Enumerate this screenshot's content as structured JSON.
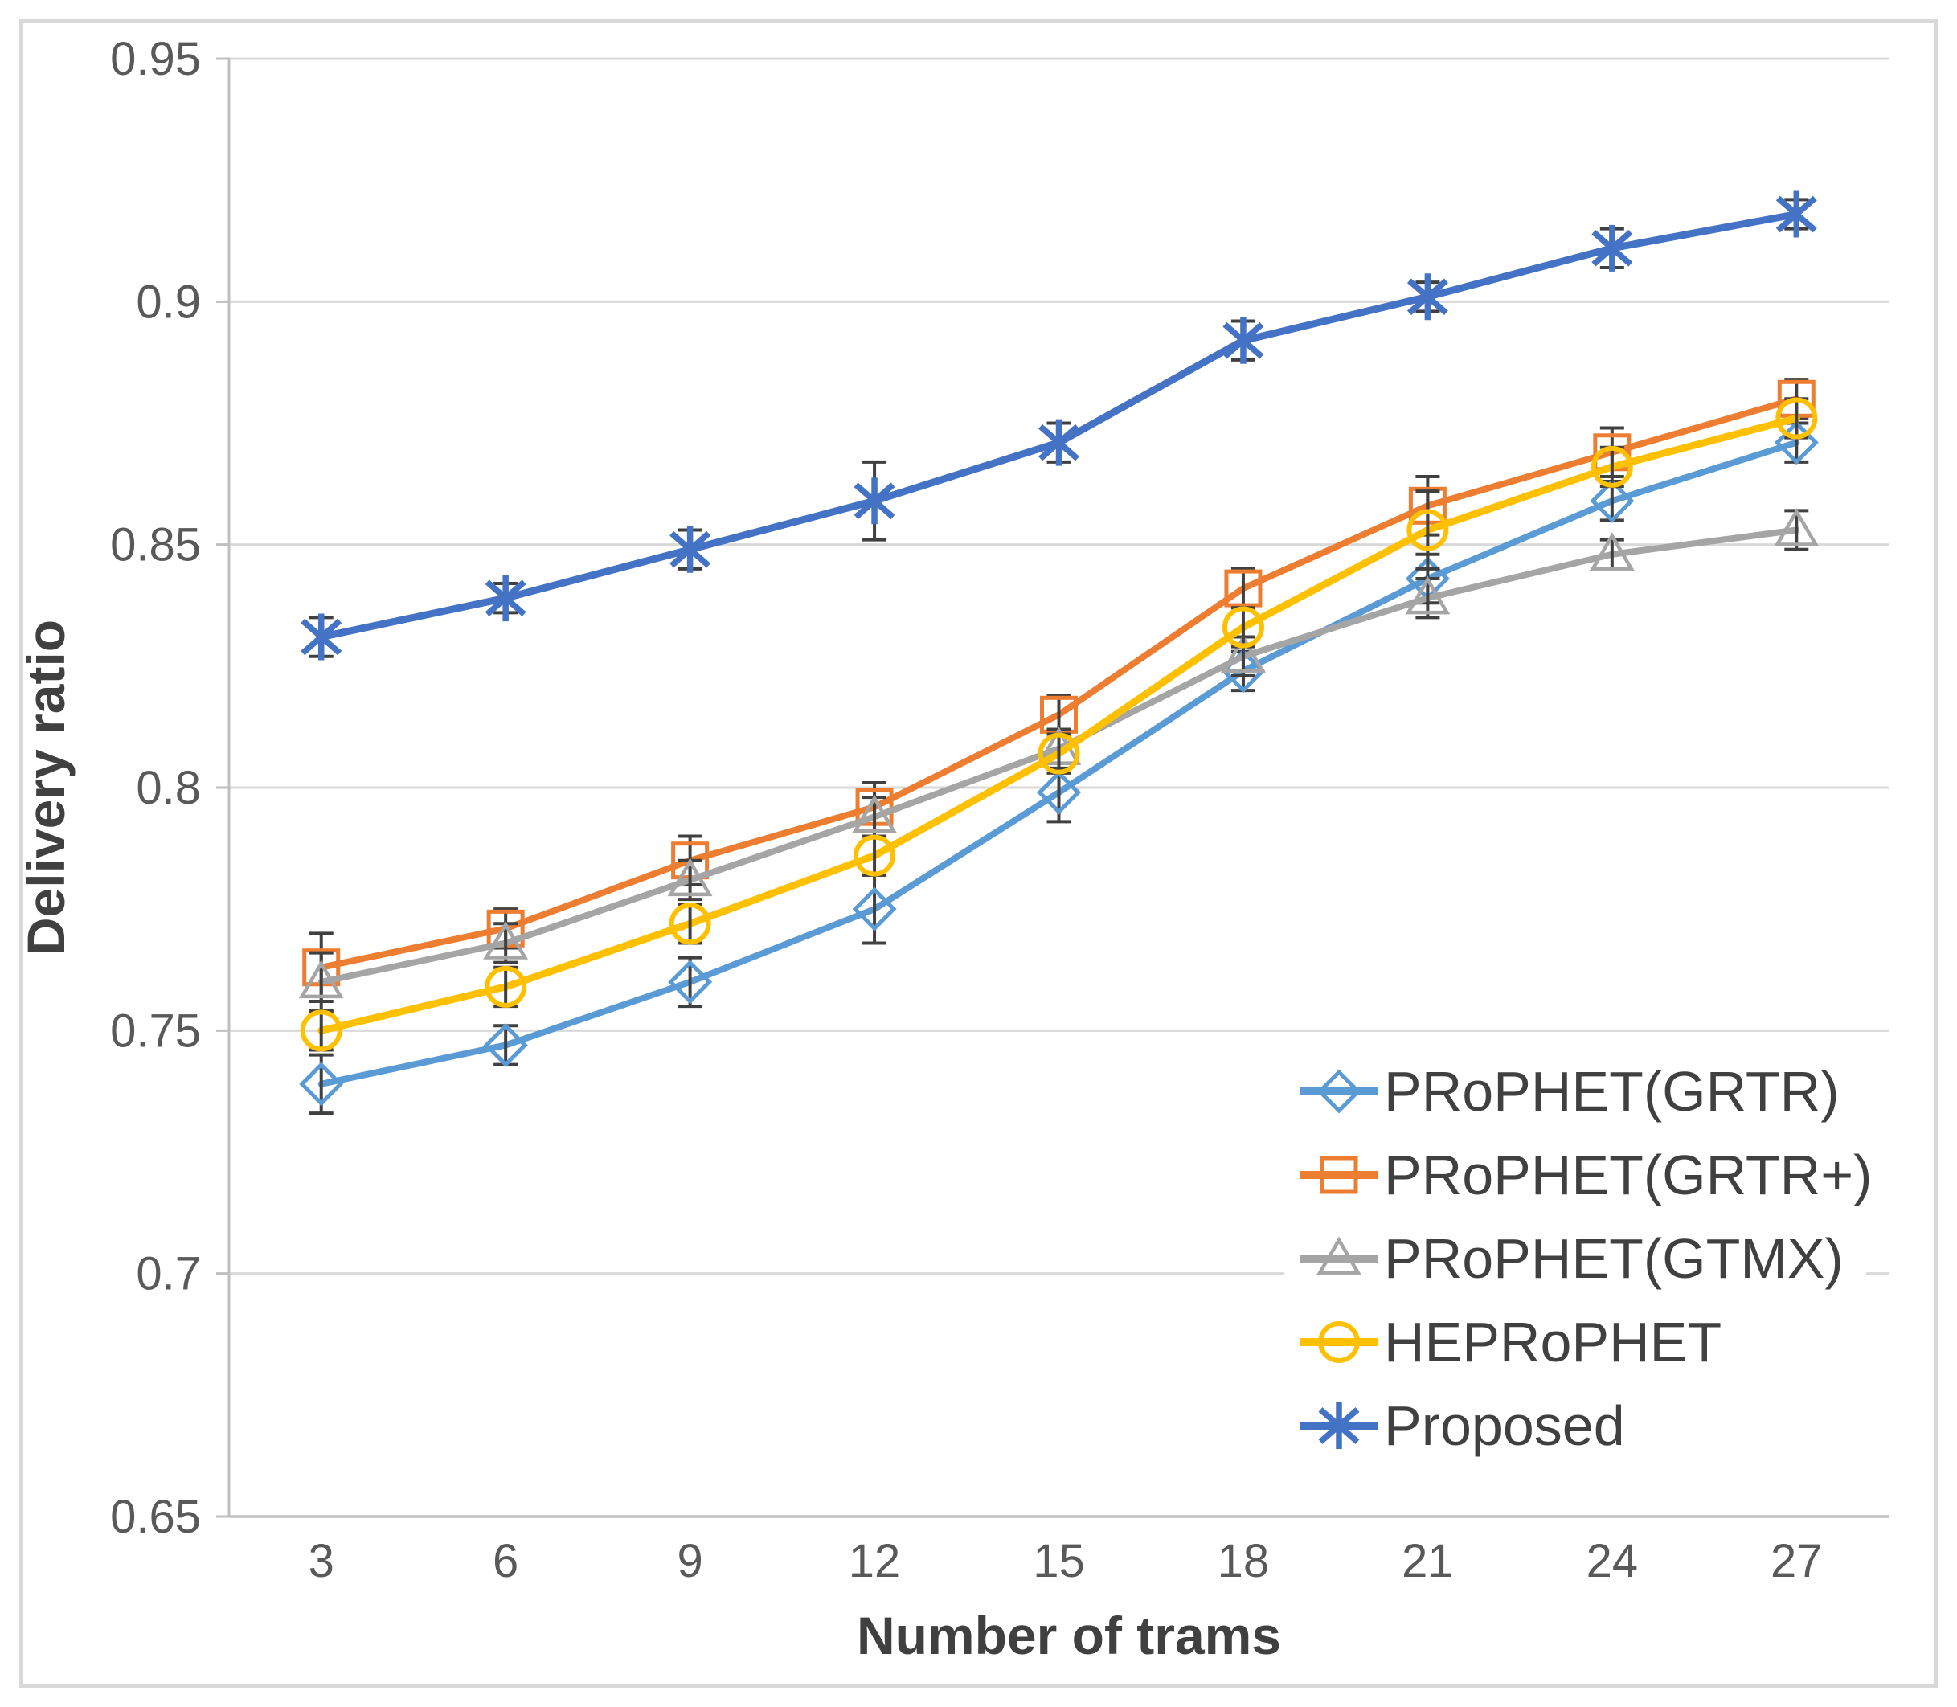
{
  "chart_data": {
    "type": "line",
    "title": "",
    "xlabel": "Number of trams",
    "ylabel": "Delivery ratio",
    "x": [
      3,
      6,
      9,
      12,
      15,
      18,
      21,
      24,
      27
    ],
    "x_tick_labels": [
      "3",
      "6",
      "9",
      "12",
      "15",
      "18",
      "21",
      "24",
      "27"
    ],
    "ylim": [
      0.65,
      0.95
    ],
    "ytick_step": 0.05,
    "y_tick_labels": [
      "0.95",
      "0.9",
      "0.85",
      "0.8",
      "0.75",
      "0.7",
      "0.65"
    ],
    "grid": true,
    "legend_position": "inside lower right",
    "series": [
      {
        "name": "PRoPHET(GRTR)",
        "color": "#5B9BD5",
        "marker": "diamond",
        "values": [
          0.739,
          0.747,
          0.76,
          0.775,
          0.799,
          0.824,
          0.843,
          0.859,
          0.871
        ],
        "errors": [
          0.006,
          0.004,
          0.005,
          0.007,
          0.006,
          0.004,
          0.005,
          0.004,
          0.004
        ]
      },
      {
        "name": "PRoPHET(GRTR+)",
        "color": "#ED7D31",
        "marker": "square",
        "values": [
          0.763,
          0.771,
          0.785,
          0.796,
          0.815,
          0.841,
          0.858,
          0.869,
          0.88
        ],
        "errors": [
          0.007,
          0.004,
          0.005,
          0.005,
          0.004,
          0.004,
          0.006,
          0.005,
          0.004
        ]
      },
      {
        "name": "PRoPHET(GTMX)",
        "color": "#A5A5A5",
        "marker": "triangle",
        "values": [
          0.76,
          0.768,
          0.781,
          0.794,
          0.808,
          0.827,
          0.839,
          0.848,
          0.853
        ],
        "errors": [
          0.006,
          0.004,
          0.004,
          0.004,
          0.004,
          0.004,
          0.004,
          0.003,
          0.004
        ]
      },
      {
        "name": "HEPRoPHET",
        "color": "#FFC000",
        "marker": "circle",
        "values": [
          0.75,
          0.759,
          0.772,
          0.786,
          0.807,
          0.833,
          0.853,
          0.866,
          0.876
        ],
        "errors": [
          0.004,
          0.004,
          0.004,
          0.004,
          0.004,
          0.004,
          0.008,
          0.004,
          0.004
        ]
      },
      {
        "name": "Proposed",
        "color": "#4472C4",
        "marker": "asterisk",
        "values": [
          0.831,
          0.839,
          0.849,
          0.859,
          0.871,
          0.892,
          0.901,
          0.911,
          0.918
        ],
        "errors": [
          0.004,
          0.003,
          0.004,
          0.008,
          0.004,
          0.004,
          0.003,
          0.004,
          0.003
        ]
      }
    ],
    "style": {
      "background": "#FFFFFF",
      "frame_color": "#D9D9D9",
      "gridline_color": "#D9D9D9",
      "axis_line_color": "#BFBFBF",
      "tick_text_color": "#595959",
      "title_text_color": "#404040",
      "error_bar_color": "#404040"
    }
  }
}
